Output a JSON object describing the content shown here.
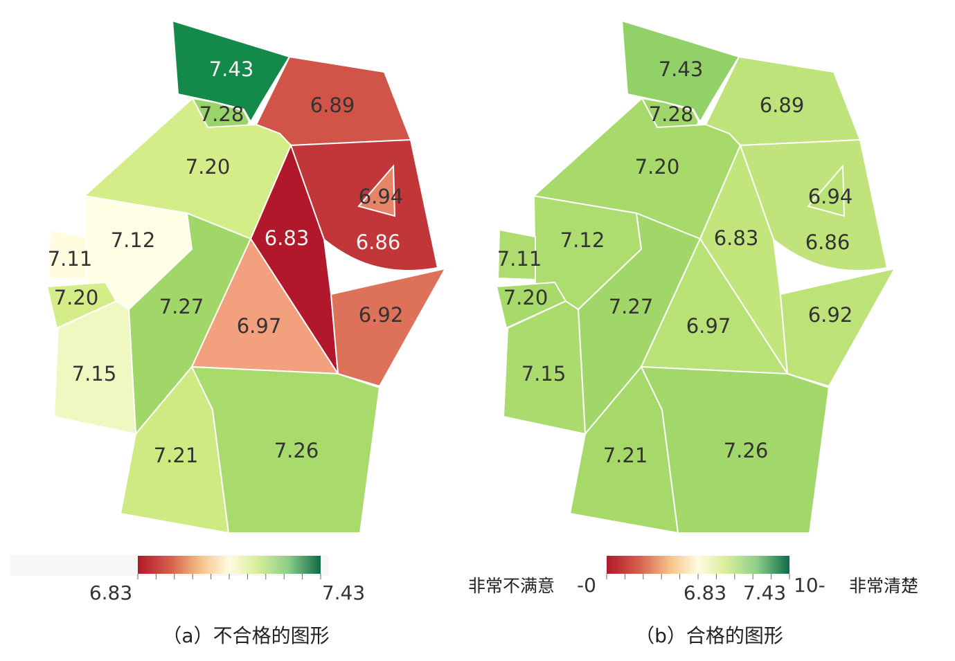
{
  "panels": [
    {
      "id": "a",
      "caption": "（a）不合格的图形",
      "legend": {
        "min_label": "6.83",
        "max_label": "7.43",
        "domain": [
          6.83,
          7.43
        ]
      },
      "regions": [
        {
          "id": "r1",
          "label": "7.43",
          "value": 7.43
        },
        {
          "id": "r2",
          "label": "7.28",
          "value": 7.28
        },
        {
          "id": "r3",
          "label": "6.89",
          "value": 6.89
        },
        {
          "id": "r4",
          "label": "7.20",
          "value": 7.2
        },
        {
          "id": "r5",
          "label": "6.86",
          "value": 6.86
        },
        {
          "id": "r6",
          "label": "6.94",
          "value": 6.94
        },
        {
          "id": "r7",
          "label": "6.83",
          "value": 6.83
        },
        {
          "id": "r8",
          "label": "7.12",
          "value": 7.12
        },
        {
          "id": "r9",
          "label": "7.11",
          "value": 7.11
        },
        {
          "id": "r10",
          "label": "7.20",
          "value": 7.2
        },
        {
          "id": "r11",
          "label": "7.27",
          "value": 7.27
        },
        {
          "id": "r12",
          "label": "6.97",
          "value": 6.97
        },
        {
          "id": "r13",
          "label": "6.92",
          "value": 6.92
        },
        {
          "id": "r14",
          "label": "7.15",
          "value": 7.15
        },
        {
          "id": "r15",
          "label": "7.21",
          "value": 7.21
        },
        {
          "id": "r16",
          "label": "7.26",
          "value": 7.26
        }
      ]
    },
    {
      "id": "b",
      "caption": "（b）合格的图形",
      "legend": {
        "domain": [
          0,
          10
        ],
        "left_text": "非常不满意",
        "zero_label": "-0",
        "ten_label": "10-",
        "right_text": "非常清楚",
        "mid_labels": [
          "6.83",
          "7.43"
        ]
      },
      "regions": [
        {
          "id": "r1",
          "label": "7.43",
          "value": 7.43
        },
        {
          "id": "r2",
          "label": "7.28",
          "value": 7.28
        },
        {
          "id": "r3",
          "label": "6.89",
          "value": 6.89
        },
        {
          "id": "r4",
          "label": "7.20",
          "value": 7.2
        },
        {
          "id": "r5",
          "label": "6.86",
          "value": 6.86
        },
        {
          "id": "r6",
          "label": "6.94",
          "value": 6.94
        },
        {
          "id": "r7",
          "label": "6.83",
          "value": 6.83
        },
        {
          "id": "r8",
          "label": "7.12",
          "value": 7.12
        },
        {
          "id": "r9",
          "label": "7.11",
          "value": 7.11
        },
        {
          "id": "r10",
          "label": "7.20",
          "value": 7.2
        },
        {
          "id": "r11",
          "label": "7.27",
          "value": 7.27
        },
        {
          "id": "r12",
          "label": "6.97",
          "value": 6.97
        },
        {
          "id": "r13",
          "label": "6.92",
          "value": 6.92
        },
        {
          "id": "r14",
          "label": "7.15",
          "value": 7.15
        },
        {
          "id": "r15",
          "label": "7.21",
          "value": 7.21
        },
        {
          "id": "r16",
          "label": "7.26",
          "value": 7.26
        }
      ]
    }
  ],
  "colors": {
    "ramp": [
      "#b2182b",
      "#d6604d",
      "#f4a582",
      "#fde9b8",
      "#ffffe5",
      "#d9ef8b",
      "#a6d96a",
      "#66bd63",
      "#1a9850",
      "#00613b"
    ],
    "border": "#ffffff"
  }
}
